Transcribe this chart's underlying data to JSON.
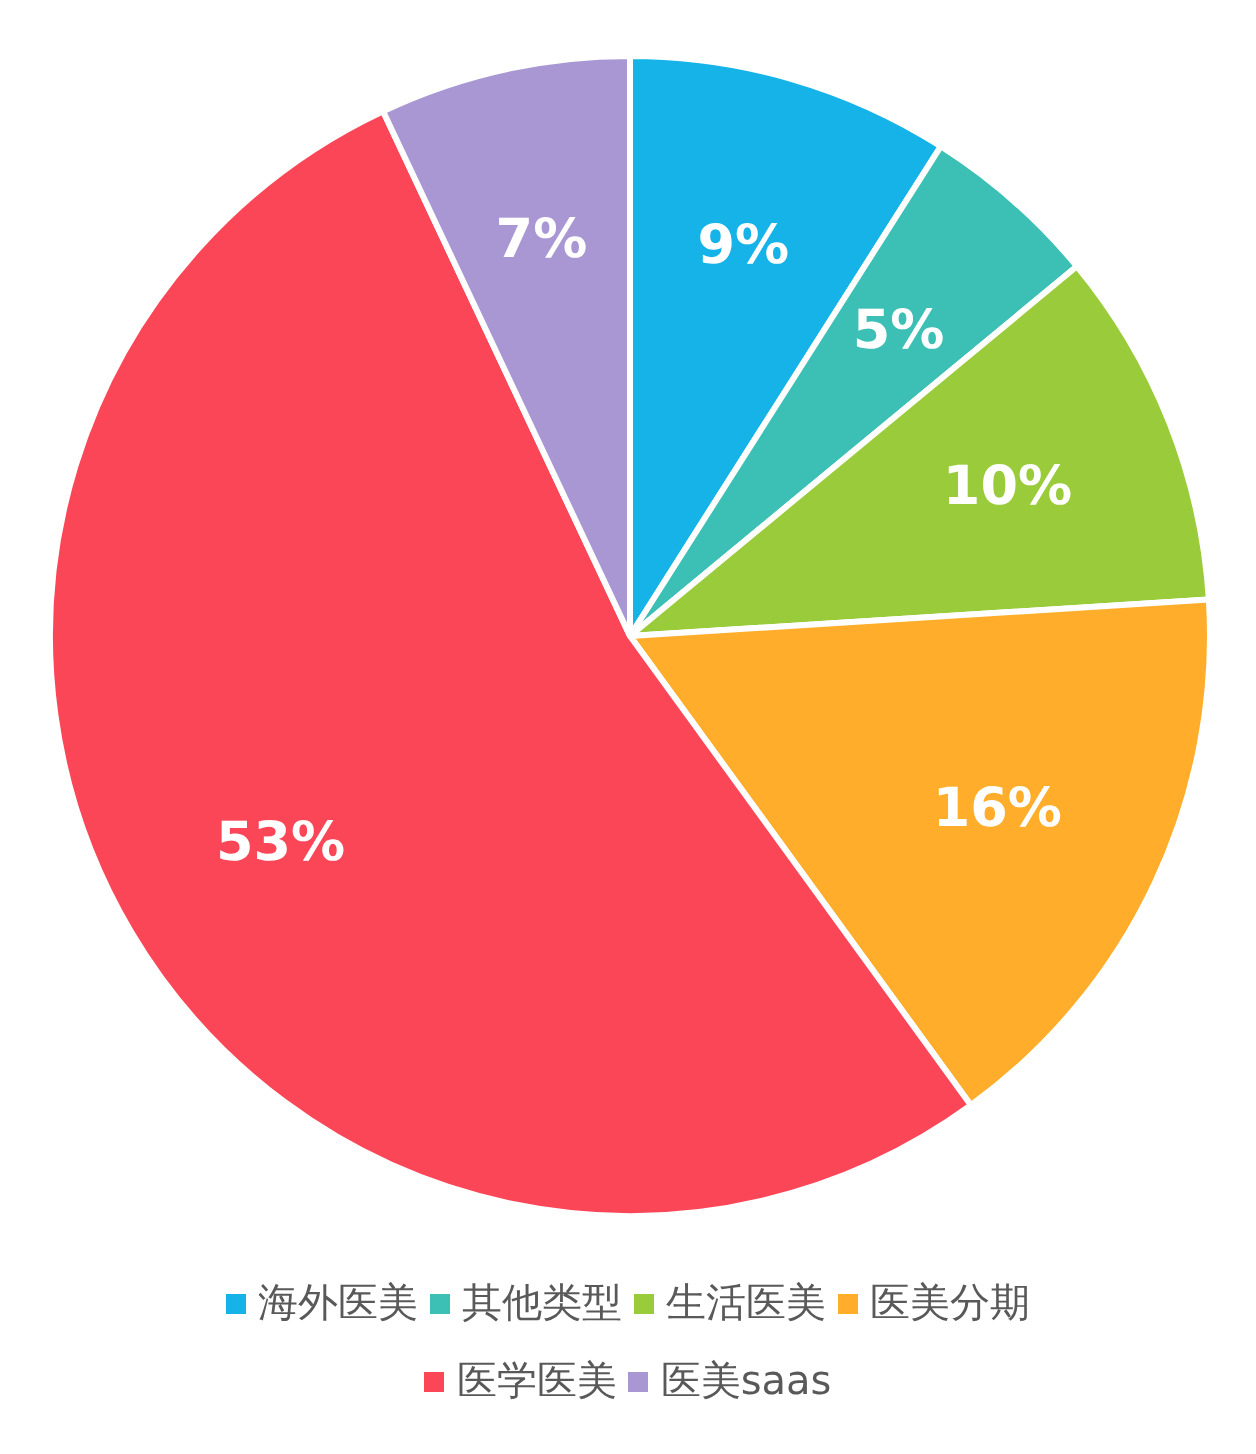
{
  "chart_data": {
    "type": "pie",
    "categories": [
      "海外医美",
      "其他类型",
      "生活医美",
      "医美分期",
      "医学医美",
      "医美saas"
    ],
    "values": [
      9,
      5,
      10,
      16,
      53,
      7
    ],
    "value_labels": [
      "9%",
      "5%",
      "10%",
      "16%",
      "53%",
      "7%"
    ],
    "colors": [
      "#15b3e8",
      "#3cbfb4",
      "#9acb3b",
      "#ffad2a",
      "#fb4658",
      "#a897d2"
    ],
    "legend": "bottom"
  }
}
